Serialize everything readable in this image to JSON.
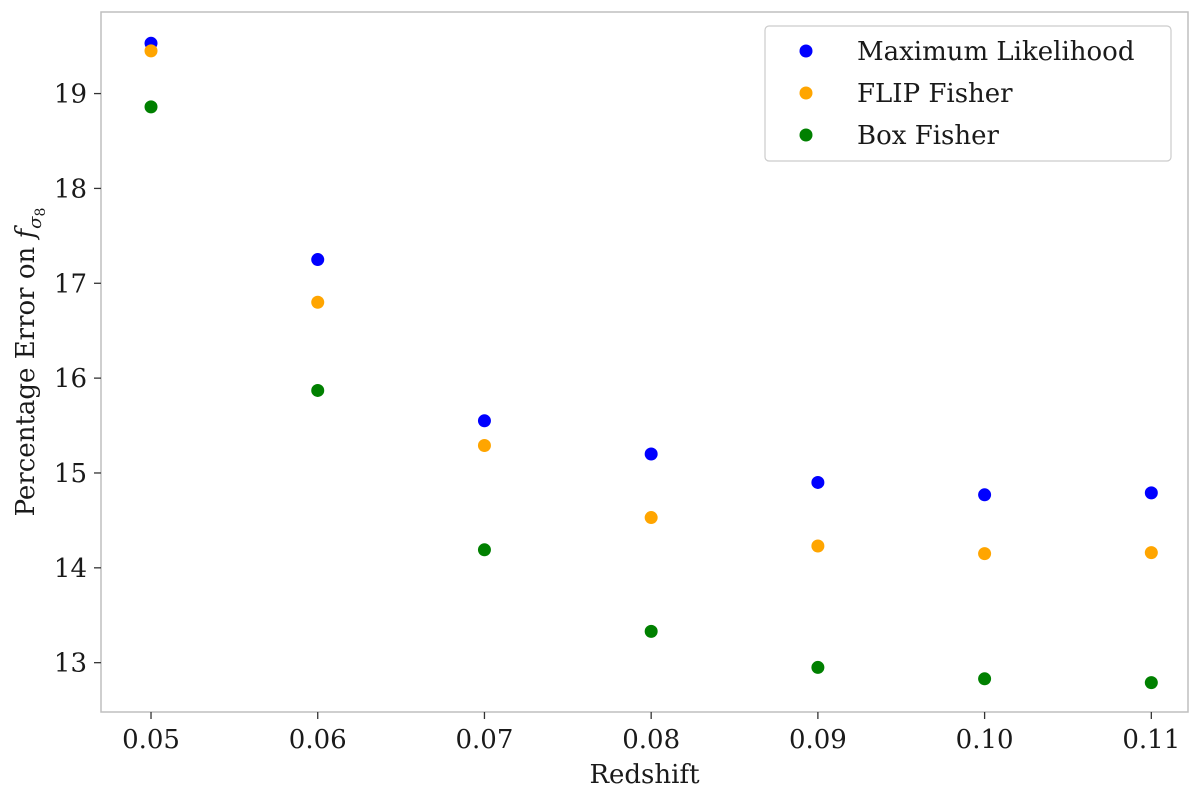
{
  "chart_data": {
    "type": "scatter",
    "title": "",
    "xlabel": "Redshift",
    "ylabel_main": "Percentage Error on ",
    "ylabel_symbol": "f",
    "ylabel_sub": "σ",
    "ylabel_subsub": "8",
    "x": [
      0.05,
      0.06,
      0.07,
      0.08,
      0.09,
      0.1,
      0.11
    ],
    "xticks": [
      "0.05",
      "0.06",
      "0.07",
      "0.08",
      "0.09",
      "0.10",
      "0.11"
    ],
    "yticks": [
      "13",
      "14",
      "15",
      "16",
      "17",
      "18",
      "19"
    ],
    "xlim": [
      0.047,
      0.1122
    ],
    "ylim": [
      12.48,
      19.86
    ],
    "grid": false,
    "legend_position": "top-right",
    "series": [
      {
        "name": "Maximum Likelihood",
        "color": "#0000ff",
        "values": [
          19.53,
          17.25,
          15.55,
          15.2,
          14.9,
          14.77,
          14.79
        ]
      },
      {
        "name": "FLIP Fisher",
        "color": "#ffa500",
        "values": [
          19.45,
          16.8,
          15.29,
          14.53,
          14.23,
          14.15,
          14.16
        ]
      },
      {
        "name": "Box Fisher",
        "color": "#008000",
        "values": [
          18.86,
          15.87,
          14.19,
          13.33,
          12.95,
          12.83,
          12.79
        ]
      }
    ]
  }
}
